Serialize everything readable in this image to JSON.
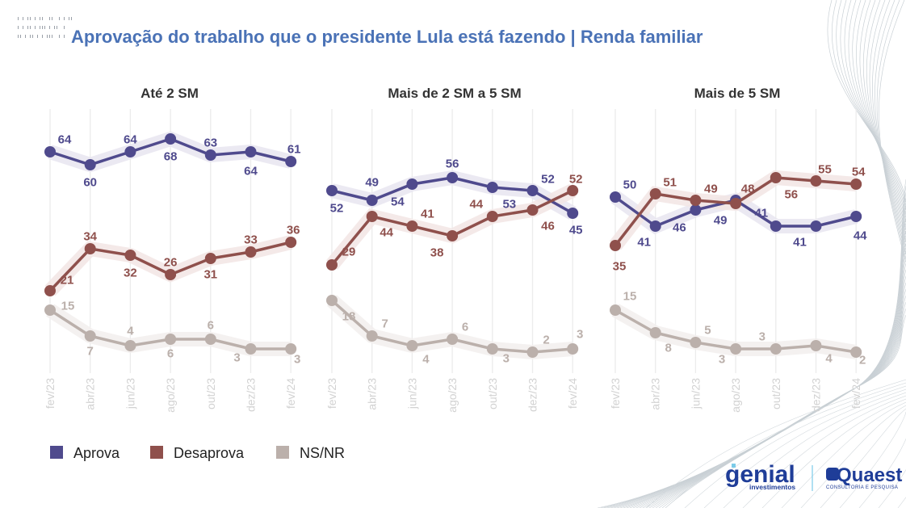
{
  "page": {
    "title": "Aprovação do trabalho que o presidente Lula está fazendo | Renda familiar",
    "title_color": "#4a72b6"
  },
  "chart_data": {
    "type": "line",
    "title": "Aprovação do trabalho que o presidente Lula está fazendo | Renda familiar",
    "xlabel": "",
    "ylabel": "",
    "x": [
      "fev/23",
      "abr/23",
      "jun/23",
      "ago/23",
      "out/23",
      "dez/23",
      "fev/24"
    ],
    "grid": "vertical",
    "legend_position": "bottom-left",
    "legend": [
      {
        "name": "Aprova",
        "color": "#4f4a8d"
      },
      {
        "name": "Desaprova",
        "color": "#8f504c"
      },
      {
        "name": "NS/NR",
        "color": "#bbb0ab"
      }
    ],
    "panels": [
      {
        "title": "Até 2 SM",
        "series": [
          {
            "name": "Aprova",
            "values": [
              64,
              60,
              64,
              68,
              63,
              64,
              61
            ]
          },
          {
            "name": "Desaprova",
            "values": [
              21,
              34,
              32,
              26,
              31,
              33,
              36
            ]
          },
          {
            "name": "NS/NR",
            "values": [
              15,
              7,
              4,
              6,
              6,
              3,
              3
            ]
          }
        ]
      },
      {
        "title": "Mais de 2 SM a 5 SM",
        "series": [
          {
            "name": "Aprova",
            "values": [
              52,
              49,
              54,
              56,
              53,
              52,
              45
            ]
          },
          {
            "name": "Desaprova",
            "values": [
              29,
              44,
              41,
              38,
              44,
              46,
              52
            ]
          },
          {
            "name": "NS/NR",
            "values": [
              18,
              7,
              4,
              6,
              3,
              2,
              3
            ]
          }
        ]
      },
      {
        "title": "Mais de 5 SM",
        "series": [
          {
            "name": "Aprova",
            "values": [
              50,
              41,
              46,
              49,
              41,
              41,
              44
            ]
          },
          {
            "name": "Desaprova",
            "values": [
              35,
              51,
              49,
              48,
              56,
              55,
              54
            ]
          },
          {
            "name": "NS/NR",
            "values": [
              15,
              8,
              5,
              3,
              3,
              4,
              2
            ]
          }
        ]
      }
    ]
  },
  "logos": {
    "genial": {
      "name": "genial",
      "sub": "investimentos",
      "color": "#1f3d98"
    },
    "quaest": {
      "name": "Quaest",
      "sub": "CONSULTORIA E PESQUISA",
      "color": "#1f3d98"
    },
    "divider_color": "#7ccbe8"
  }
}
